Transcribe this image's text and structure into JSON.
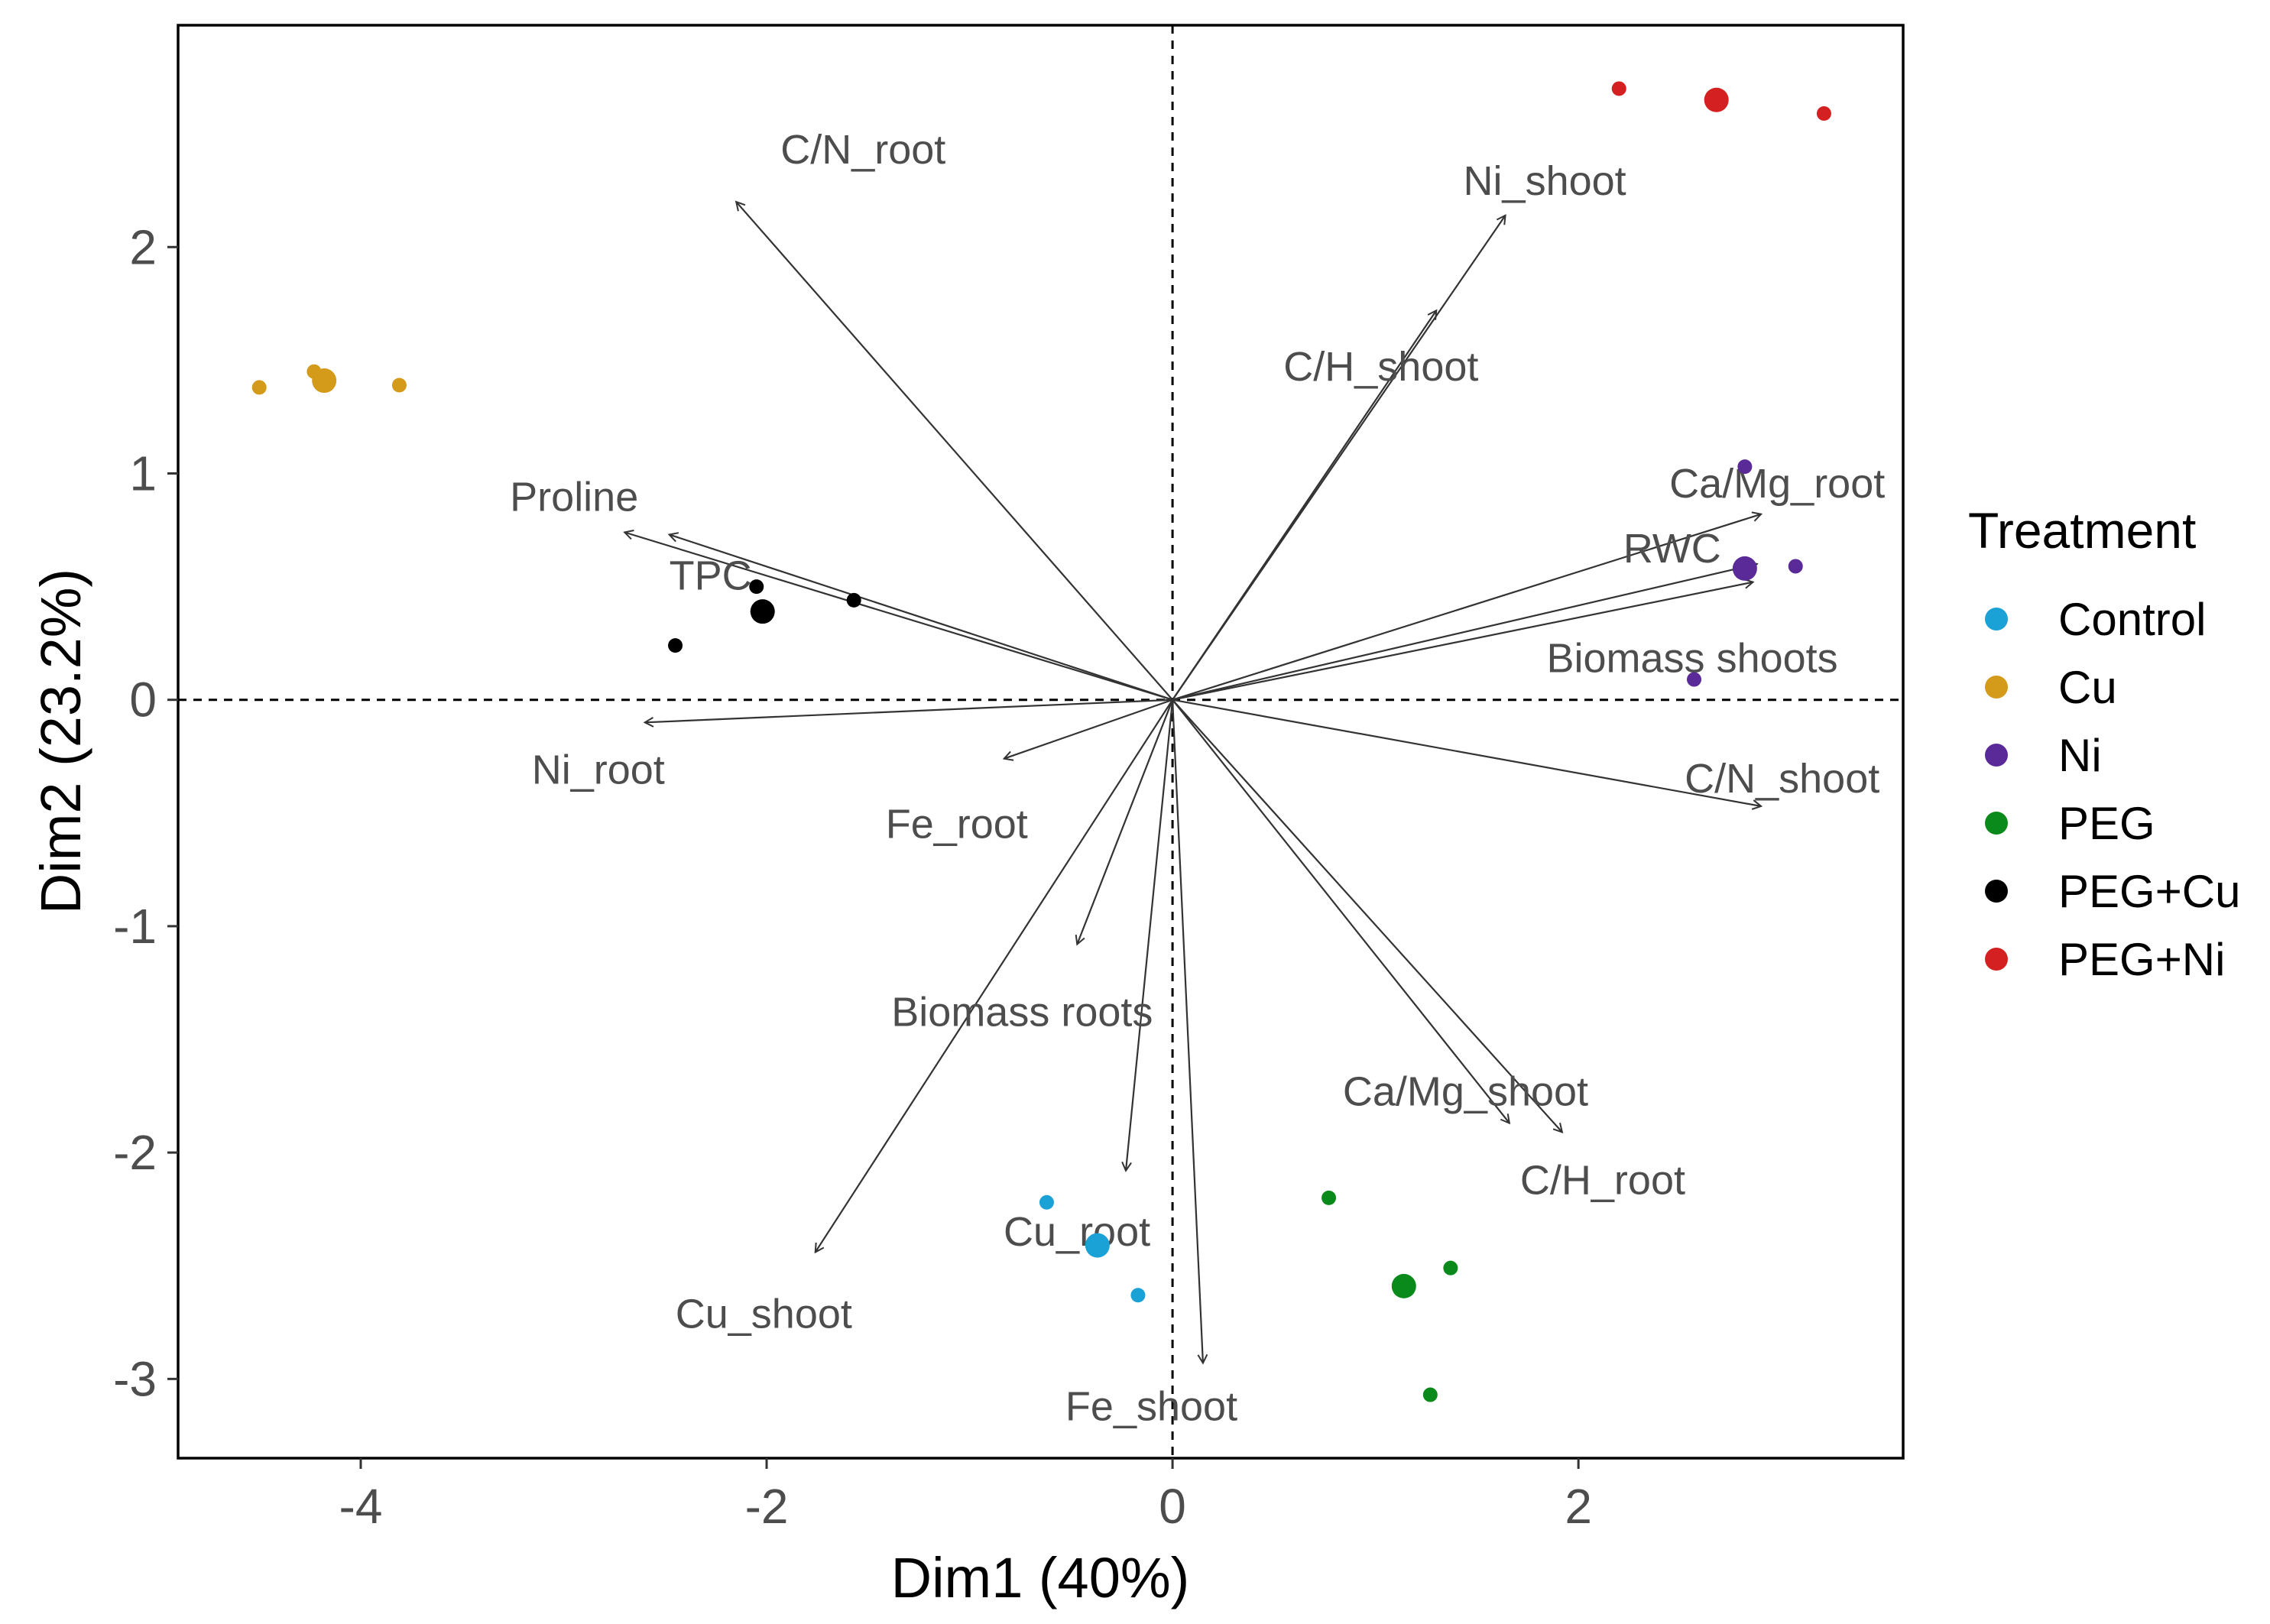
{
  "chart_data": {
    "type": "scatter",
    "subtype": "pca-biplot",
    "xlabel": "Dim1 (40%)",
    "ylabel": "Dim2 (23.2%)",
    "xlim": [
      -4.9,
      3.6
    ],
    "ylim": [
      -3.35,
      2.98
    ],
    "xticks": [
      -4,
      -2,
      0,
      2
    ],
    "yticks": [
      -3,
      -2,
      -1,
      0,
      1,
      2
    ],
    "legend_title": "Treatment",
    "legend_position": "right",
    "series": [
      {
        "name": "Control",
        "color": "#1aa1d6",
        "points": [
          [
            -0.62,
            -2.22
          ],
          [
            -0.17,
            -2.63
          ]
        ],
        "centroid": [
          -0.37,
          -2.41
        ]
      },
      {
        "name": "Cu",
        "color": "#d49a1a",
        "points": [
          [
            -4.5,
            1.38
          ],
          [
            -4.23,
            1.45
          ],
          [
            -4.17,
            1.42
          ],
          [
            -3.81,
            1.39
          ]
        ],
        "centroid": [
          -4.18,
          1.41
        ]
      },
      {
        "name": "Ni",
        "color": "#5a2a99",
        "points": [
          [
            2.82,
            1.03
          ],
          [
            3.07,
            0.59
          ],
          [
            2.57,
            0.09
          ]
        ],
        "centroid": [
          2.82,
          0.58
        ]
      },
      {
        "name": "PEG",
        "color": "#0a8a1a",
        "points": [
          [
            0.77,
            -2.2
          ],
          [
            1.37,
            -2.51
          ],
          [
            1.27,
            -3.07
          ]
        ],
        "centroid": [
          1.14,
          -2.59
        ]
      },
      {
        "name": "PEG+Cu",
        "color": "#000000",
        "points": [
          [
            -2.05,
            0.5
          ],
          [
            -1.57,
            0.44
          ],
          [
            -2.45,
            0.24
          ]
        ],
        "centroid": [
          -2.02,
          0.39
        ]
      },
      {
        "name": "PEG+Ni",
        "color": "#d42020",
        "points": [
          [
            2.2,
            2.7
          ],
          [
            3.21,
            2.59
          ]
        ],
        "centroid": [
          2.68,
          2.65
        ]
      }
    ],
    "variables": [
      {
        "name": "C/N_root",
        "x": -2.15,
        "y": 2.2
      },
      {
        "name": "Ni_shoot",
        "x": 1.64,
        "y": 2.14
      },
      {
        "name": "C/H_shoot",
        "x": 1.3,
        "y": 1.72
      },
      {
        "name": "Ca/Mg_root",
        "x": 2.9,
        "y": 0.82
      },
      {
        "name": "RWC",
        "x": 2.88,
        "y": 0.6
      },
      {
        "name": "Biomass shoots",
        "x": 2.86,
        "y": 0.52
      },
      {
        "name": "Proline",
        "x": -2.7,
        "y": 0.74
      },
      {
        "name": "TPC",
        "x": -2.48,
        "y": 0.73
      },
      {
        "name": "Ni_root",
        "x": -2.6,
        "y": -0.1
      },
      {
        "name": "Fe_root",
        "x": -0.83,
        "y": -0.26
      },
      {
        "name": "C/N_shoot",
        "x": 2.9,
        "y": -0.47
      },
      {
        "name": "Biomass roots",
        "x": -0.47,
        "y": -1.08
      },
      {
        "name": "Ca/Mg_shoot",
        "x": 1.66,
        "y": -1.87
      },
      {
        "name": "C/H_root",
        "x": 1.92,
        "y": -1.91
      },
      {
        "name": "Cu_shoot",
        "x": -1.76,
        "y": -2.44
      },
      {
        "name": "Cu_root",
        "x": -0.23,
        "y": -2.08
      },
      {
        "name": "Fe_shoot",
        "x": 0.15,
        "y": -2.93
      }
    ]
  }
}
